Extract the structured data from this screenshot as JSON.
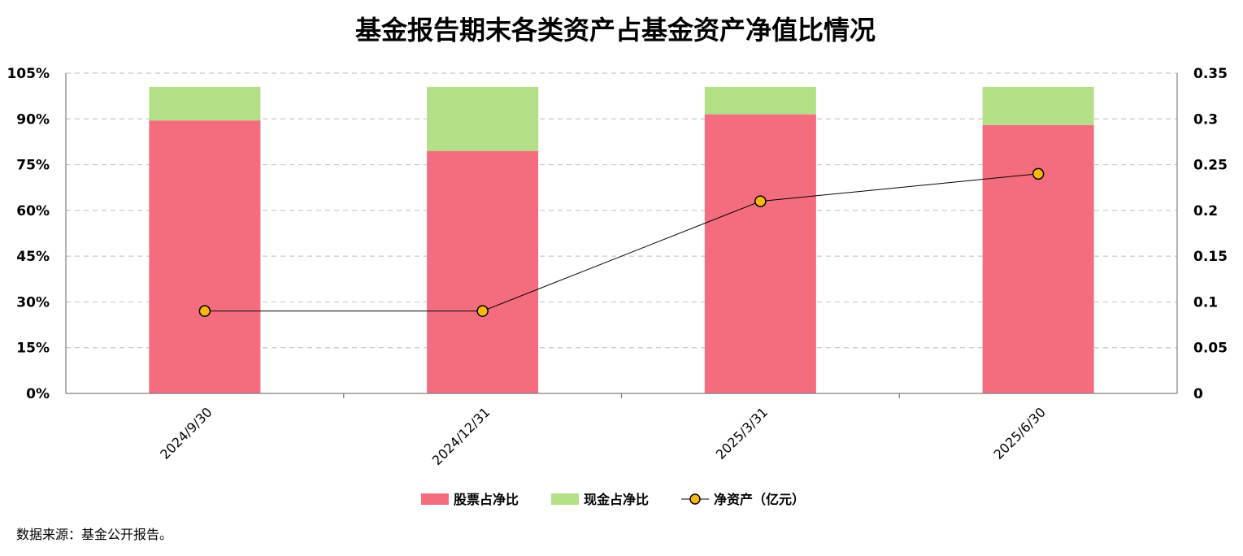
{
  "chart_data": {
    "type": "bar+line",
    "title": "基金报告期末各类资产占基金资产净值比情况",
    "categories": [
      "2024/9/30",
      "2024/12/31",
      "2025/3/31",
      "2025/6/30"
    ],
    "series": [
      {
        "name": "股票占净比",
        "type": "stacked-bar",
        "axis": "left",
        "color": "#f46d7e",
        "values": [
          89.5,
          79.5,
          91.5,
          88.0
        ]
      },
      {
        "name": "现金占净比",
        "type": "stacked-bar",
        "axis": "left",
        "color": "#b3df87",
        "values": [
          11.0,
          21.0,
          9.0,
          12.5
        ]
      },
      {
        "name": "净资产（亿元）",
        "type": "line",
        "axis": "right",
        "color": "#000000",
        "marker_color": "#f9b90c",
        "values": [
          0.09,
          0.09,
          0.21,
          0.24
        ]
      }
    ],
    "y_left": {
      "min": 0,
      "max": 105,
      "ticks": [
        "0%",
        "15%",
        "30%",
        "45%",
        "60%",
        "75%",
        "90%",
        "105%"
      ]
    },
    "y_right": {
      "min": 0,
      "max": 0.35,
      "ticks": [
        "0",
        "0.05",
        "0.1",
        "0.15",
        "0.2",
        "0.25",
        "0.3",
        "0.35"
      ]
    },
    "grid": true,
    "legend_position": "bottom"
  },
  "source_note": "数据来源：基金公开报告。"
}
